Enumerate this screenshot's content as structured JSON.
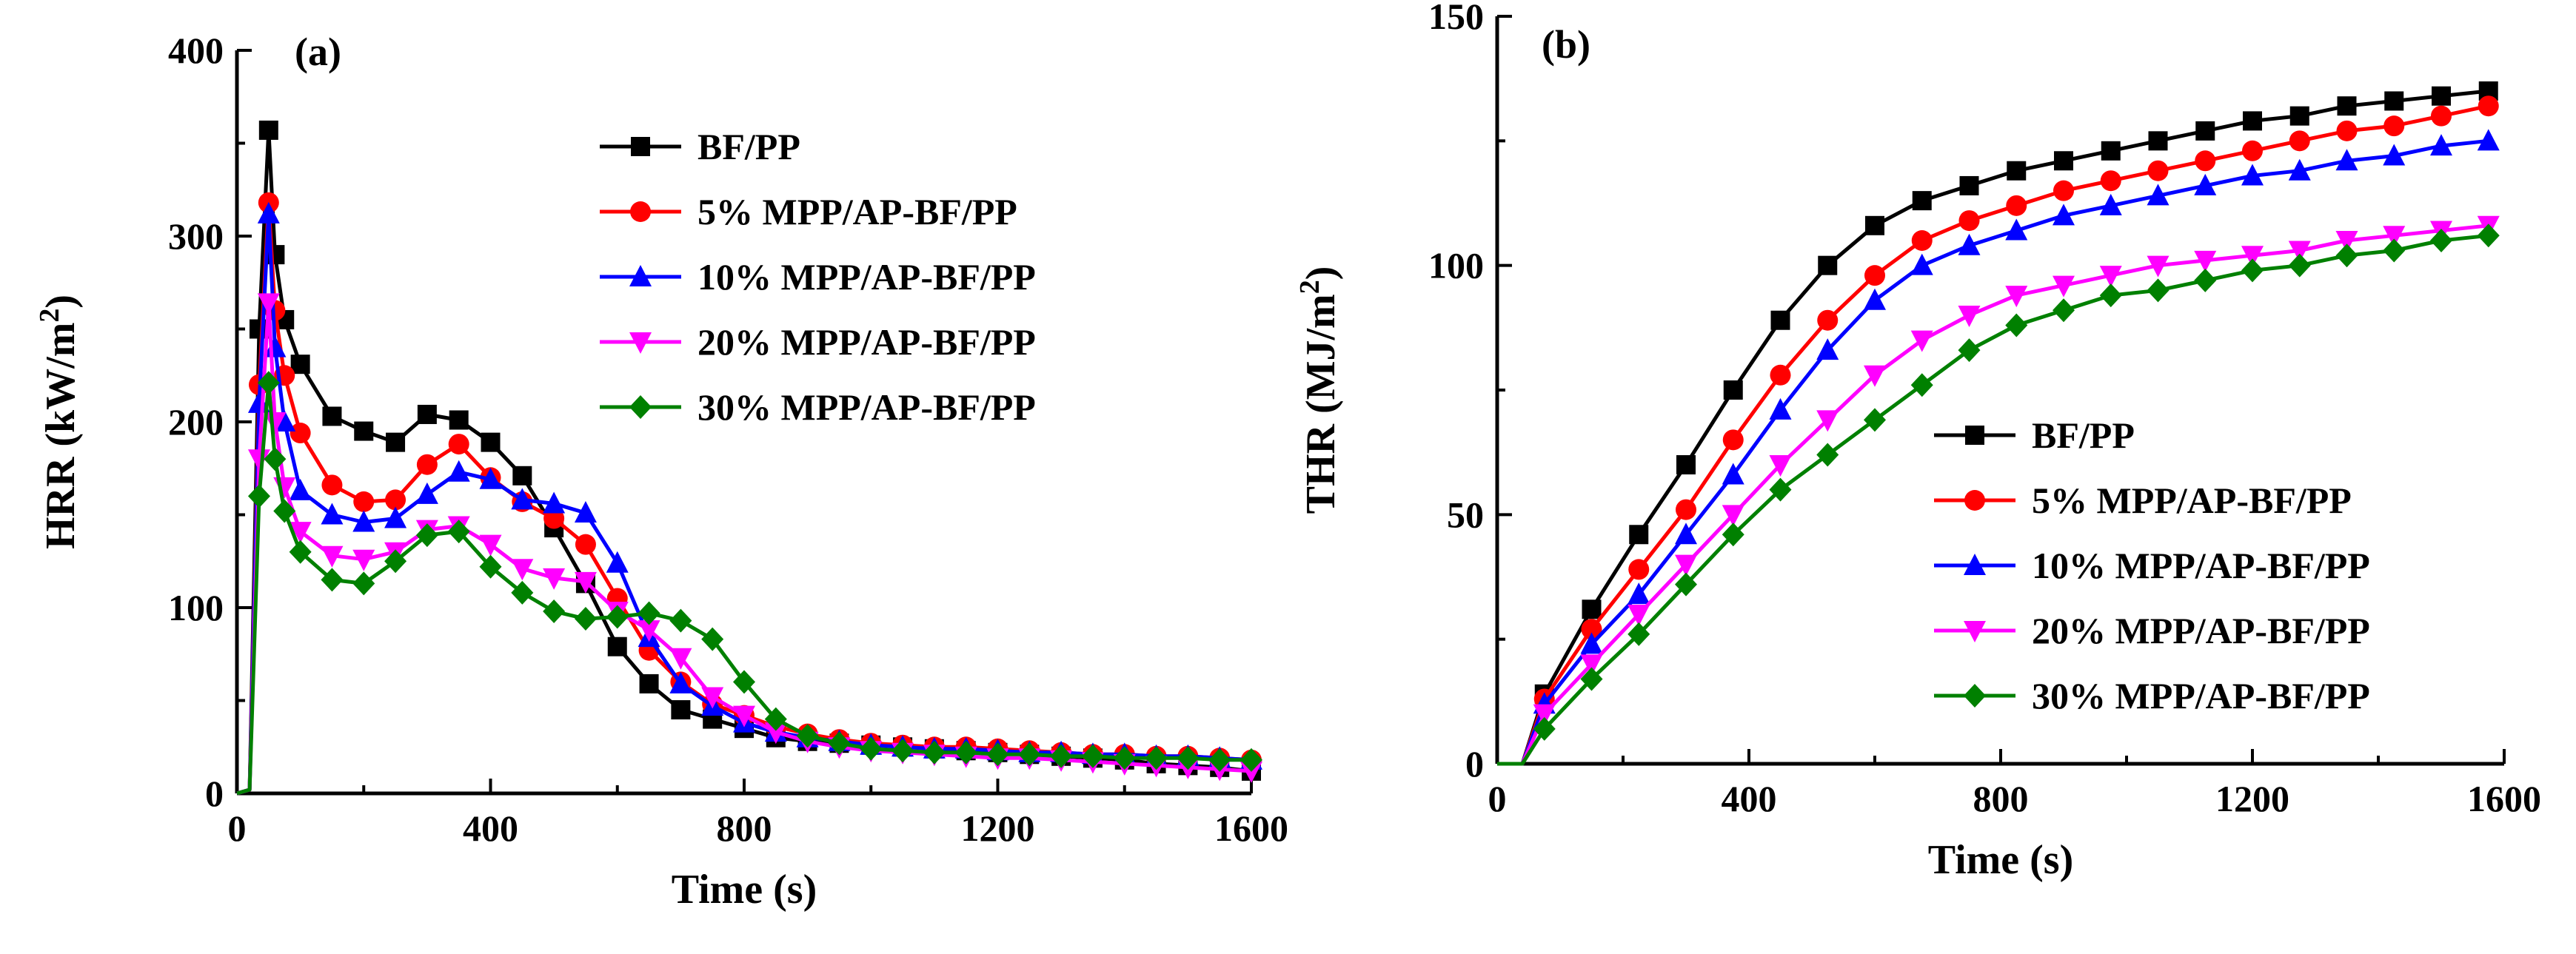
{
  "chart_data": [
    {
      "type": "line",
      "panel": "(a)",
      "xlabel": "Time (s)",
      "ylabel": "HRR (kW/m²)",
      "xlim": [
        0,
        1600
      ],
      "ylim": [
        0,
        400
      ],
      "xticks": [
        0,
        400,
        800,
        1200,
        1600
      ],
      "yticks": [
        0,
        100,
        200,
        300,
        400
      ],
      "legend_position": "top-right",
      "series": [
        {
          "name": "BF/PP",
          "color": "#000000",
          "marker": "square",
          "x": [
            0,
            20,
            35,
            50,
            60,
            75,
            100,
            150,
            200,
            250,
            300,
            350,
            400,
            450,
            500,
            550,
            600,
            650,
            700,
            750,
            800,
            850,
            900,
            950,
            1000,
            1050,
            1100,
            1150,
            1200,
            1250,
            1300,
            1350,
            1400,
            1450,
            1500,
            1550,
            1600
          ],
          "y": [
            0,
            2,
            250,
            357,
            290,
            255,
            231,
            203,
            195,
            189,
            204,
            201,
            189,
            171,
            143,
            113,
            79,
            59,
            45,
            40,
            35,
            30,
            28,
            27,
            26,
            25,
            24,
            23,
            22,
            21,
            20,
            19,
            18,
            16,
            15,
            14,
            12
          ]
        },
        {
          "name": "5% MPP/AP-BF/PP",
          "color": "#ff0000",
          "marker": "circle",
          "x": [
            0,
            20,
            35,
            50,
            60,
            75,
            100,
            150,
            200,
            250,
            300,
            350,
            400,
            450,
            500,
            550,
            600,
            650,
            700,
            750,
            800,
            850,
            900,
            950,
            1000,
            1050,
            1100,
            1150,
            1200,
            1250,
            1300,
            1350,
            1400,
            1450,
            1500,
            1550,
            1600
          ],
          "y": [
            0,
            2,
            220,
            318,
            260,
            225,
            194,
            166,
            157,
            158,
            177,
            188,
            170,
            157,
            148,
            134,
            105,
            77,
            60,
            48,
            42,
            36,
            32,
            29,
            27,
            26,
            25,
            25,
            24,
            23,
            22,
            21,
            21,
            20,
            20,
            19,
            18
          ]
        },
        {
          "name": "10% MPP/AP-BF/PP",
          "color": "#0000ff",
          "marker": "triangle-up",
          "x": [
            0,
            20,
            35,
            50,
            60,
            75,
            100,
            150,
            200,
            250,
            300,
            350,
            400,
            450,
            500,
            550,
            600,
            650,
            700,
            750,
            800,
            850,
            900,
            950,
            1000,
            1050,
            1100,
            1150,
            1200,
            1250,
            1300,
            1350,
            1400,
            1450,
            1500,
            1550,
            1600
          ],
          "y": [
            0,
            2,
            210,
            312,
            240,
            200,
            163,
            150,
            146,
            148,
            161,
            173,
            169,
            158,
            156,
            151,
            124,
            84,
            59,
            47,
            38,
            33,
            30,
            28,
            26,
            25,
            24,
            24,
            23,
            22,
            22,
            21,
            21,
            20,
            20,
            19,
            18
          ]
        },
        {
          "name": "20% MPP/AP-BF/PP",
          "color": "#ff00ff",
          "marker": "triangle-down",
          "x": [
            0,
            20,
            35,
            50,
            60,
            75,
            100,
            150,
            200,
            250,
            300,
            350,
            400,
            450,
            500,
            550,
            600,
            650,
            700,
            750,
            800,
            850,
            900,
            950,
            1000,
            1050,
            1100,
            1150,
            1200,
            1250,
            1300,
            1350,
            1400,
            1450,
            1500,
            1550,
            1600
          ],
          "y": [
            0,
            2,
            180,
            264,
            200,
            165,
            141,
            128,
            126,
            130,
            142,
            144,
            134,
            121,
            116,
            114,
            98,
            88,
            73,
            52,
            42,
            33,
            28,
            25,
            23,
            22,
            21,
            20,
            19,
            19,
            18,
            17,
            16,
            15,
            14,
            13,
            12
          ]
        },
        {
          "name": "30% MPP/AP-BF/PP",
          "color": "#008000",
          "marker": "diamond",
          "x": [
            0,
            20,
            35,
            50,
            60,
            75,
            100,
            150,
            200,
            250,
            300,
            350,
            400,
            450,
            500,
            550,
            600,
            650,
            700,
            750,
            800,
            850,
            900,
            950,
            1000,
            1050,
            1100,
            1150,
            1200,
            1250,
            1300,
            1350,
            1400,
            1450,
            1500,
            1550,
            1600
          ],
          "y": [
            0,
            2,
            160,
            221,
            180,
            152,
            130,
            115,
            113,
            125,
            139,
            141,
            122,
            108,
            98,
            94,
            95,
            97,
            93,
            83,
            60,
            40,
            31,
            27,
            24,
            23,
            22,
            22,
            21,
            21,
            20,
            20,
            19,
            19,
            19,
            18,
            18
          ]
        }
      ]
    },
    {
      "type": "line",
      "panel": "(b)",
      "xlabel": "Time (s)",
      "ylabel": "THR (MJ/m²)",
      "xlim": [
        0,
        1600
      ],
      "ylim": [
        0,
        150
      ],
      "xticks": [
        0,
        400,
        800,
        1200,
        1600
      ],
      "yticks": [
        0,
        50,
        100,
        150
      ],
      "legend_position": "center-right",
      "series": [
        {
          "name": "BF/PP",
          "color": "#000000",
          "marker": "square",
          "x": [
            0,
            40,
            75,
            150,
            225,
            300,
            375,
            450,
            525,
            600,
            675,
            750,
            825,
            900,
            975,
            1050,
            1125,
            1200,
            1275,
            1350,
            1425,
            1500,
            1575
          ],
          "y": [
            0,
            0,
            14,
            31,
            46,
            60,
            75,
            89,
            100,
            108,
            113,
            116,
            119,
            121,
            123,
            125,
            127,
            129,
            130,
            132,
            133,
            134,
            135
          ]
        },
        {
          "name": "5% MPP/AP-BF/PP",
          "color": "#ff0000",
          "marker": "circle",
          "x": [
            0,
            40,
            75,
            150,
            225,
            300,
            375,
            450,
            525,
            600,
            675,
            750,
            825,
            900,
            975,
            1050,
            1125,
            1200,
            1275,
            1350,
            1425,
            1500,
            1575
          ],
          "y": [
            0,
            0,
            13,
            27,
            39,
            51,
            65,
            78,
            89,
            98,
            105,
            109,
            112,
            115,
            117,
            119,
            121,
            123,
            125,
            127,
            128,
            130,
            132
          ]
        },
        {
          "name": "10% MPP/AP-BF/PP",
          "color": "#0000ff",
          "marker": "triangle-up",
          "x": [
            0,
            40,
            75,
            150,
            225,
            300,
            375,
            450,
            525,
            600,
            675,
            750,
            825,
            900,
            975,
            1050,
            1125,
            1200,
            1275,
            1350,
            1425,
            1500,
            1575
          ],
          "y": [
            0,
            0,
            12,
            24,
            34,
            46,
            58,
            71,
            83,
            93,
            100,
            104,
            107,
            110,
            112,
            114,
            116,
            118,
            119,
            121,
            122,
            124,
            125
          ]
        },
        {
          "name": "20% MPP/AP-BF/PP",
          "color": "#ff00ff",
          "marker": "triangle-down",
          "x": [
            0,
            40,
            75,
            150,
            225,
            300,
            375,
            450,
            525,
            600,
            675,
            750,
            825,
            900,
            975,
            1050,
            1125,
            1200,
            1275,
            1350,
            1425,
            1500,
            1575
          ],
          "y": [
            0,
            0,
            10,
            20,
            30,
            40,
            50,
            60,
            69,
            78,
            85,
            90,
            94,
            96,
            98,
            100,
            101,
            102,
            103,
            105,
            106,
            107,
            108
          ]
        },
        {
          "name": "30% MPP/AP-BF/PP",
          "color": "#008000",
          "marker": "diamond",
          "x": [
            0,
            40,
            75,
            150,
            225,
            300,
            375,
            450,
            525,
            600,
            675,
            750,
            825,
            900,
            975,
            1050,
            1125,
            1200,
            1275,
            1350,
            1425,
            1500,
            1575
          ],
          "y": [
            0,
            0,
            7,
            17,
            26,
            36,
            46,
            55,
            62,
            69,
            76,
            83,
            88,
            91,
            94,
            95,
            97,
            99,
            100,
            102,
            103,
            105,
            106
          ]
        }
      ]
    }
  ]
}
